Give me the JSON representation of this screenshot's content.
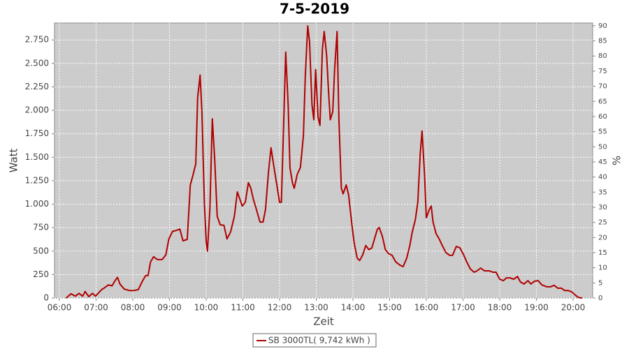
{
  "chart_data": {
    "type": "line",
    "title": "7-5-2019",
    "x_label": "Zeit",
    "y_label": "Watt",
    "y2_label": "%",
    "x": [
      "06:11",
      "06:19",
      "06:26",
      "06:32",
      "06:38",
      "06:42",
      "06:48",
      "06:54",
      "06:59",
      "07:09",
      "07:14",
      "07:20",
      "07:26",
      "07:31",
      "07:35",
      "07:39",
      "07:46",
      "07:54",
      "08:02",
      "08:09",
      "08:15",
      "08:21",
      "08:25",
      "08:29",
      "08:34",
      "08:40",
      "08:48",
      "08:54",
      "08:59",
      "09:05",
      "09:11",
      "09:17",
      "09:22",
      "09:29",
      "09:34",
      "09:38",
      "09:43",
      "09:46",
      "09:50",
      "09:53",
      "09:57",
      "10:00",
      "10:02",
      "10:06",
      "10:10",
      "10:14",
      "10:18",
      "10:23",
      "10:29",
      "10:34",
      "10:40",
      "10:46",
      "10:51",
      "10:55",
      "10:59",
      "11:04",
      "11:09",
      "11:13",
      "11:17",
      "11:22",
      "11:28",
      "11:33",
      "11:37",
      "11:42",
      "11:46",
      "11:51",
      "11:55",
      "12:00",
      "12:03",
      "12:07",
      "12:10",
      "12:14",
      "12:17",
      "12:21",
      "12:24",
      "12:29",
      "12:34",
      "12:39",
      "12:42",
      "12:46",
      "12:49",
      "12:53",
      "12:56",
      "12:59",
      "13:03",
      "13:06",
      "13:10",
      "13:13",
      "13:17",
      "13:20",
      "13:23",
      "13:27",
      "13:30",
      "13:34",
      "13:37",
      "13:41",
      "13:44",
      "13:49",
      "13:53",
      "13:58",
      "14:02",
      "14:07",
      "14:11",
      "14:16",
      "14:21",
      "14:26",
      "14:31",
      "14:35",
      "14:40",
      "14:43",
      "14:48",
      "14:53",
      "14:58",
      "15:04",
      "15:10",
      "15:17",
      "15:22",
      "15:28",
      "15:33",
      "15:37",
      "15:42",
      "15:46",
      "15:50",
      "15:53",
      "15:57",
      "16:00",
      "16:05",
      "16:08",
      "16:11",
      "16:16",
      "16:21",
      "16:26",
      "16:32",
      "16:38",
      "16:43",
      "16:49",
      "16:55",
      "17:01",
      "17:06",
      "17:12",
      "17:18",
      "17:23",
      "17:29",
      "17:35",
      "17:43",
      "17:49",
      "17:54",
      "18:00",
      "18:06",
      "18:11",
      "18:17",
      "18:23",
      "18:29",
      "18:34",
      "18:40",
      "18:46",
      "18:51",
      "18:57",
      "19:03",
      "19:09",
      "19:17",
      "19:23",
      "19:29",
      "19:35",
      "19:41",
      "19:46",
      "19:52",
      "19:58",
      "20:03",
      "20:09",
      "20:15"
    ],
    "series": [
      {
        "name": "SB 3000TL( 9,742 kWh )",
        "color": "#b00000",
        "values": [
          0,
          45,
          20,
          50,
          20,
          70,
          15,
          50,
          20,
          90,
          110,
          140,
          130,
          185,
          220,
          150,
          95,
          80,
          80,
          90,
          170,
          240,
          240,
          385,
          440,
          410,
          410,
          460,
          630,
          710,
          720,
          735,
          610,
          625,
          1205,
          1300,
          1430,
          2135,
          2375,
          1985,
          1020,
          610,
          500,
          945,
          1910,
          1465,
          870,
          780,
          775,
          630,
          705,
          870,
          1130,
          1055,
          980,
          1020,
          1230,
          1170,
          1055,
          945,
          810,
          810,
          945,
          1355,
          1600,
          1390,
          1230,
          1020,
          1020,
          1910,
          2620,
          2060,
          1390,
          1230,
          1170,
          1320,
          1390,
          1725,
          2360,
          2900,
          2730,
          2060,
          1900,
          2435,
          1925,
          1840,
          2655,
          2840,
          2580,
          2210,
          1900,
          1985,
          2435,
          2840,
          1910,
          1170,
          1110,
          1205,
          1095,
          795,
          590,
          425,
          400,
          460,
          560,
          515,
          535,
          625,
          735,
          750,
          660,
          515,
          475,
          455,
          385,
          350,
          335,
          425,
          560,
          705,
          835,
          1020,
          1540,
          1780,
          1320,
          855,
          945,
          980,
          810,
          685,
          630,
          560,
          485,
          455,
          455,
          550,
          535,
          460,
          385,
          310,
          275,
          290,
          320,
          290,
          290,
          275,
          275,
          200,
          185,
          215,
          215,
          200,
          230,
          170,
          150,
          185,
          150,
          180,
          185,
          140,
          120,
          120,
          135,
          105,
          105,
          80,
          80,
          65,
          35,
          5,
          0
        ]
      }
    ],
    "xlim": [
      "05:52",
      "20:32"
    ],
    "xticks": [
      "06:00",
      "07:00",
      "08:00",
      "09:00",
      "10:00",
      "11:00",
      "12:00",
      "13:00",
      "14:00",
      "15:00",
      "16:00",
      "17:00",
      "18:00",
      "19:00",
      "20:00"
    ],
    "ylim": [
      0,
      2930
    ],
    "yticks": [
      0,
      250,
      500,
      750,
      {
        "value": 1000,
        "label": "1.000"
      },
      {
        "value": 1250,
        "label": "1.250"
      },
      {
        "value": 1500,
        "label": "1.500"
      },
      {
        "value": 1750,
        "label": "1.750"
      },
      {
        "value": 2000,
        "label": "2.000"
      },
      {
        "value": 2250,
        "label": "2.250"
      },
      {
        "value": 2500,
        "label": "2.500"
      },
      {
        "value": 2750,
        "label": "2.750"
      }
    ],
    "y2lim": [
      0,
      90.9
    ],
    "y2ticks": [
      0,
      5,
      10,
      15,
      20,
      25,
      30,
      35,
      40,
      45,
      50,
      55,
      60,
      65,
      70,
      75,
      80,
      85,
      90
    ],
    "grid": true,
    "legend": "bottom"
  }
}
